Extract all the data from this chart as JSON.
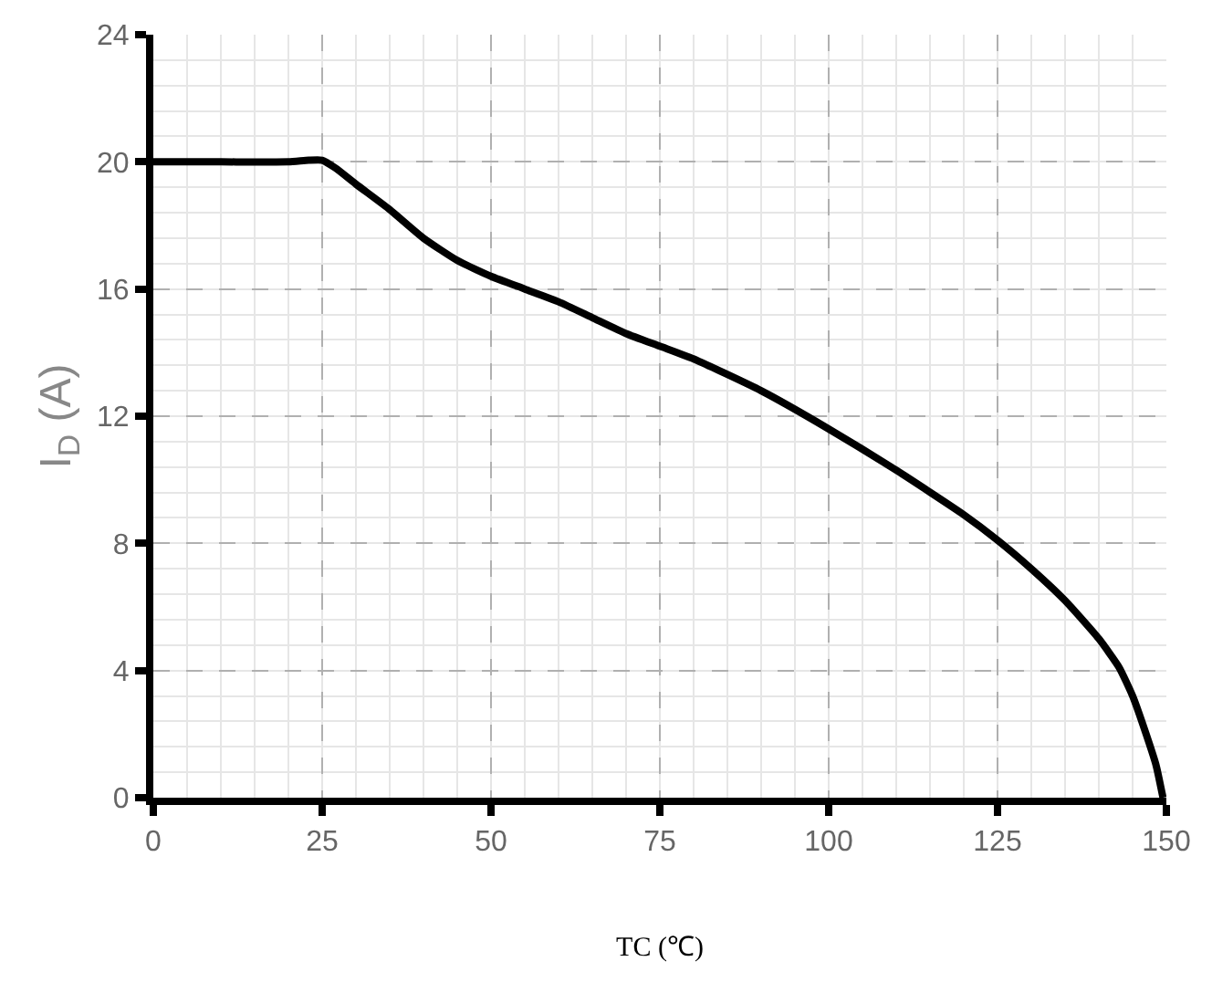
{
  "chart_data": {
    "type": "line",
    "xlabel": "TC (℃)",
    "ylabel": "I$_{D}$ (A)",
    "x": [
      0,
      10,
      20,
      23,
      25,
      27,
      30,
      35,
      40,
      45,
      50,
      55,
      60,
      65,
      70,
      75,
      80,
      90,
      100,
      110,
      120,
      125,
      130,
      135,
      140,
      143,
      145,
      147,
      148.5,
      149.5
    ],
    "series": [
      {
        "color": "#000000",
        "values": [
          20,
          20,
          20,
          20.05,
          20.05,
          19.8,
          19.3,
          18.5,
          17.6,
          16.9,
          16.4,
          16.0,
          15.6,
          15.1,
          14.6,
          14.2,
          13.8,
          12.8,
          11.6,
          10.3,
          8.9,
          8.1,
          7.2,
          6.2,
          5.0,
          4.1,
          3.2,
          2.0,
          1.0,
          0
        ]
      }
    ],
    "xlim": [
      0,
      150
    ],
    "xticks": [
      0,
      25,
      50,
      75,
      100,
      125,
      150
    ],
    "ylim": [
      0,
      24
    ],
    "yticks": [
      0,
      4,
      8,
      12,
      16,
      20,
      24
    ],
    "grid": true,
    "marker": "none",
    "line_style": "solid"
  }
}
